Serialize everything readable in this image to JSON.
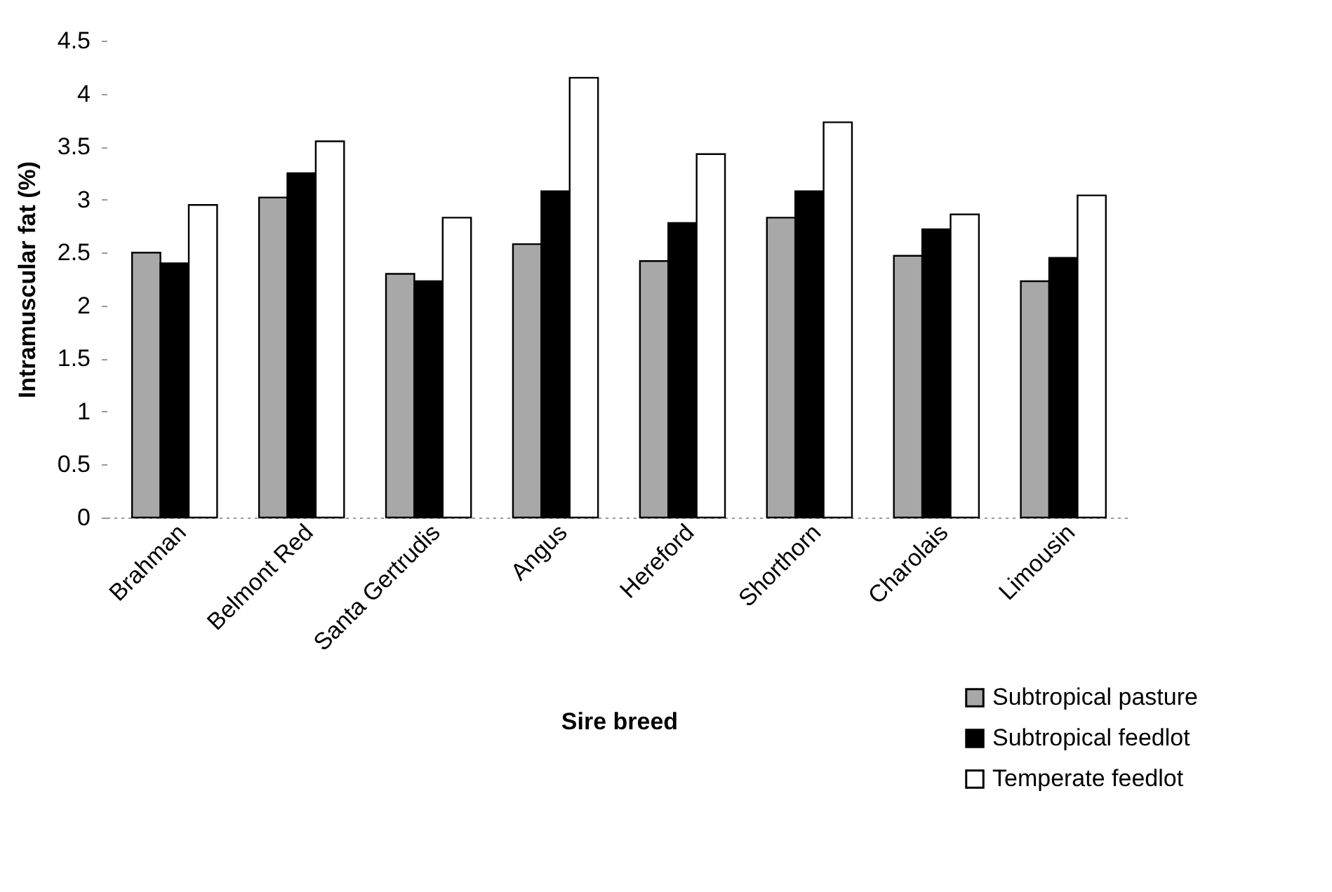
{
  "chart_data": {
    "type": "bar",
    "xlabel": "Sire breed",
    "ylabel": "Intramuscular fat (%)",
    "categories": [
      "Brahman",
      "Belmont Red",
      "Santa Gertrudis",
      "Angus",
      "Hereford",
      "Shorthorn",
      "Charolais",
      "Limousin"
    ],
    "series": [
      {
        "name": "Subtropical pasture",
        "color": "#a8a8a8",
        "values": [
          2.5,
          3.02,
          2.3,
          2.58,
          2.42,
          2.83,
          2.47,
          2.23
        ]
      },
      {
        "name": "Subtropical feedlot",
        "color": "#000000",
        "values": [
          2.4,
          3.25,
          2.23,
          3.08,
          2.78,
          3.08,
          2.72,
          2.45
        ]
      },
      {
        "name": "Temperate feedlot",
        "color": "#ffffff",
        "values": [
          2.95,
          3.55,
          2.83,
          4.15,
          3.43,
          3.73,
          2.86,
          3.04
        ]
      }
    ],
    "ylim": [
      0,
      4.5
    ],
    "yticks": [
      0,
      0.5,
      1,
      1.5,
      2,
      2.5,
      3,
      3.5,
      4,
      4.5
    ],
    "grid": false,
    "legend": "bottom right"
  }
}
